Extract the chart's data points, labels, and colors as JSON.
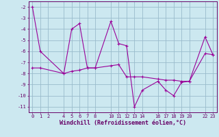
{
  "x_main": [
    0,
    1,
    4,
    5,
    6,
    7,
    8,
    10,
    11,
    12,
    13,
    14,
    16,
    17,
    18,
    19,
    20,
    22,
    23
  ],
  "y_main": [
    -2,
    -6,
    -8,
    -4,
    -3.5,
    -7.5,
    -7.5,
    -3.3,
    -5.3,
    -5.5,
    -11,
    -9.5,
    -8.7,
    -9.5,
    -10,
    -8.8,
    -8.7,
    -4.7,
    -6.3
  ],
  "x_trend": [
    0,
    1,
    4,
    5,
    6,
    7,
    8,
    10,
    11,
    12,
    13,
    14,
    16,
    17,
    18,
    19,
    20,
    22,
    23
  ],
  "y_trend": [
    -7.5,
    -7.5,
    -8,
    -7.8,
    -7.7,
    -7.5,
    -7.5,
    -7.3,
    -7.2,
    -8.3,
    -8.3,
    -8.3,
    -8.5,
    -8.6,
    -8.6,
    -8.7,
    -8.7,
    -6.2,
    -6.3
  ],
  "xlabel": "Windchill (Refroidissement éolien,°C)",
  "ylim": [
    -11.5,
    -1.5
  ],
  "xlim": [
    -0.5,
    23.5
  ],
  "xticks": [
    0,
    1,
    2,
    4,
    5,
    6,
    7,
    8,
    10,
    11,
    12,
    13,
    14,
    16,
    17,
    18,
    19,
    20,
    22,
    23
  ],
  "yticks": [
    -2,
    -3,
    -4,
    -5,
    -6,
    -7,
    -8,
    -9,
    -10,
    -11
  ],
  "line_color": "#990099",
  "bg_color": "#cce8f0",
  "grid_color": "#99bbcc",
  "tick_fontsize": 5.0,
  "xlabel_fontsize": 6.0,
  "tick_color": "#660066",
  "spine_color": "#660066"
}
